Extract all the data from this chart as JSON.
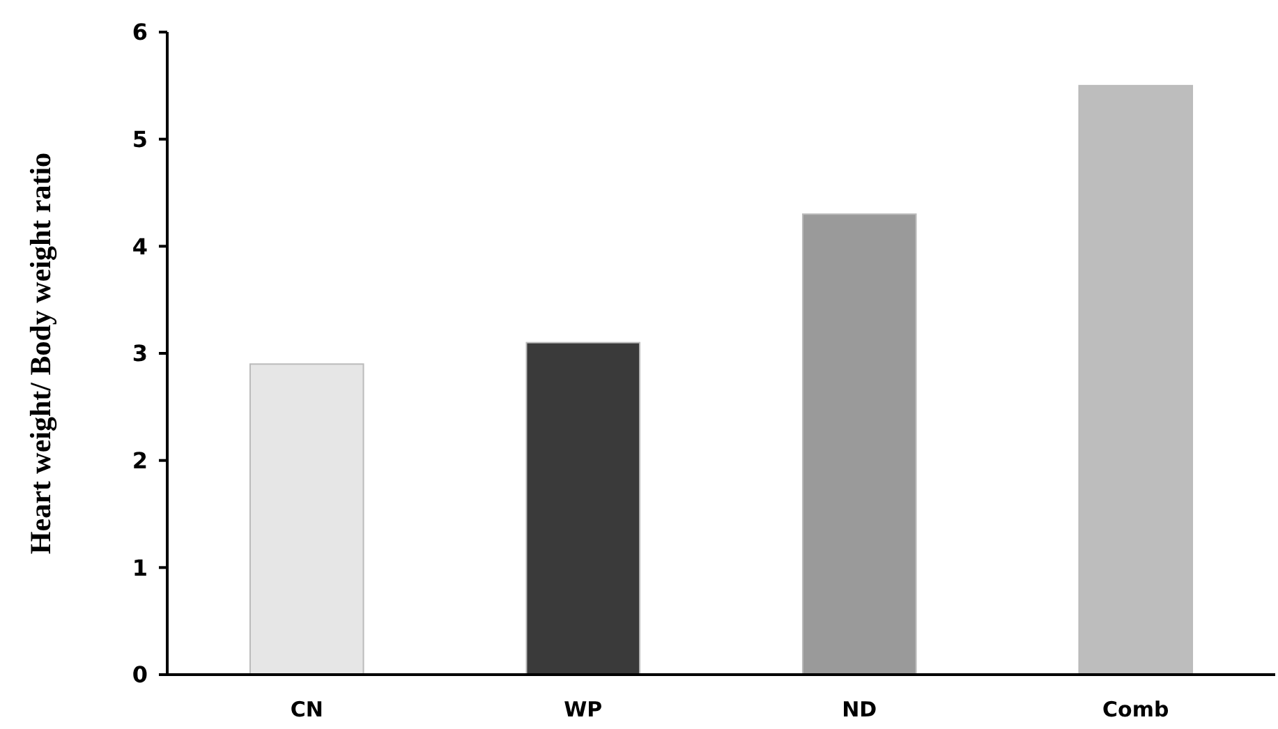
{
  "chart_data": {
    "type": "bar",
    "ylabel": "Heart weight/ Body weight ratio",
    "categories": [
      "CN",
      "WP",
      "ND",
      "Comb"
    ],
    "values": [
      2.9,
      3.1,
      4.3,
      5.5
    ],
    "colors": [
      "#e6e6e6",
      "#3a3a3a",
      "#9a9a9a",
      "#bdbdbd"
    ],
    "ylim": [
      0,
      6
    ],
    "yticks": [
      0,
      1,
      2,
      3,
      4,
      5,
      6
    ],
    "grid": false
  }
}
